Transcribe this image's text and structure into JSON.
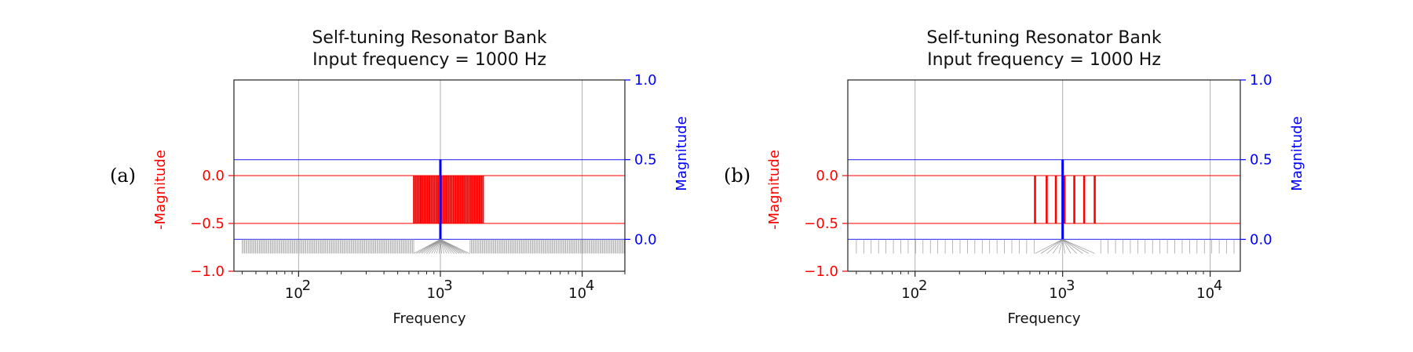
{
  "chart_data": [
    {
      "type": "stem",
      "panel_label": "(a)",
      "title": "Self-tuning Resonator Bank",
      "subtitle": "Input frequency = 1000 Hz",
      "xlabel": "Frequency",
      "ylabel_left": "-Magnitude",
      "ylabel_right": "Magnitude",
      "x_scale": "log",
      "xlim": [
        35,
        20000
      ],
      "x_ticks": [
        {
          "value": 100,
          "base": "10",
          "exp": "2"
        },
        {
          "value": 1000,
          "base": "10",
          "exp": "3"
        },
        {
          "value": 10000,
          "base": "10",
          "exp": "4"
        }
      ],
      "left_ylim": [
        -1.0,
        1.0
      ],
      "left_yticks": [
        "0.0",
        "−0.5",
        "−1.0"
      ],
      "left_ytick_values": [
        0.0,
        -0.5,
        -1.0
      ],
      "right_ylim": [
        -0.2,
        1.0
      ],
      "right_yticks": [
        "0.0",
        "0.5",
        "1.0"
      ],
      "right_ytick_values": [
        0.0,
        0.5,
        1.0
      ],
      "grid": true,
      "colors": {
        "left": "#ff0000",
        "right": "#0000ff",
        "grey": "#9a9a9a"
      },
      "resonator_start_hz": 40,
      "resonator_end_hz": 20000,
      "resonator_ratio": 1.0201,
      "input_hz": 1000,
      "input_magnitude": 0.5,
      "red_band_hz": [
        650,
        2000
      ],
      "red_magnitude": -0.5,
      "grey_fan_hz": [
        650,
        1600
      ]
    },
    {
      "type": "stem",
      "panel_label": "(b)",
      "title": "Self-tuning Resonator Bank",
      "subtitle": "Input frequency = 1000 Hz",
      "xlabel": "Frequency",
      "ylabel_left": "-Magnitude",
      "ylabel_right": "Magnitude",
      "x_scale": "log",
      "xlim": [
        35,
        16000
      ],
      "x_ticks": [
        {
          "value": 100,
          "base": "10",
          "exp": "2"
        },
        {
          "value": 1000,
          "base": "10",
          "exp": "3"
        },
        {
          "value": 10000,
          "base": "10",
          "exp": "4"
        }
      ],
      "left_ylim": [
        -1.0,
        1.0
      ],
      "left_yticks": [
        "0.0",
        "−0.5",
        "−1.0"
      ],
      "left_ytick_values": [
        0.0,
        -0.5,
        -1.0
      ],
      "right_ylim": [
        -0.2,
        1.0
      ],
      "right_yticks": [
        "0.0",
        "0.5",
        "1.0"
      ],
      "right_ytick_values": [
        0.0,
        0.5,
        1.0
      ],
      "grid": true,
      "colors": {
        "left": "#ff0000",
        "right": "#0000ff",
        "grey": "#9a9a9a"
      },
      "resonator_start_hz": 40,
      "resonator_end_hz": 16000,
      "resonator_ratio": 1.1225,
      "input_hz": 1000,
      "input_magnitude": 0.5,
      "red_hz": [
        650,
        780,
        900,
        1030,
        1200,
        1400,
        1650
      ],
      "red_magnitude": -0.5,
      "grey_fan_hz": [
        650,
        1650
      ]
    }
  ]
}
